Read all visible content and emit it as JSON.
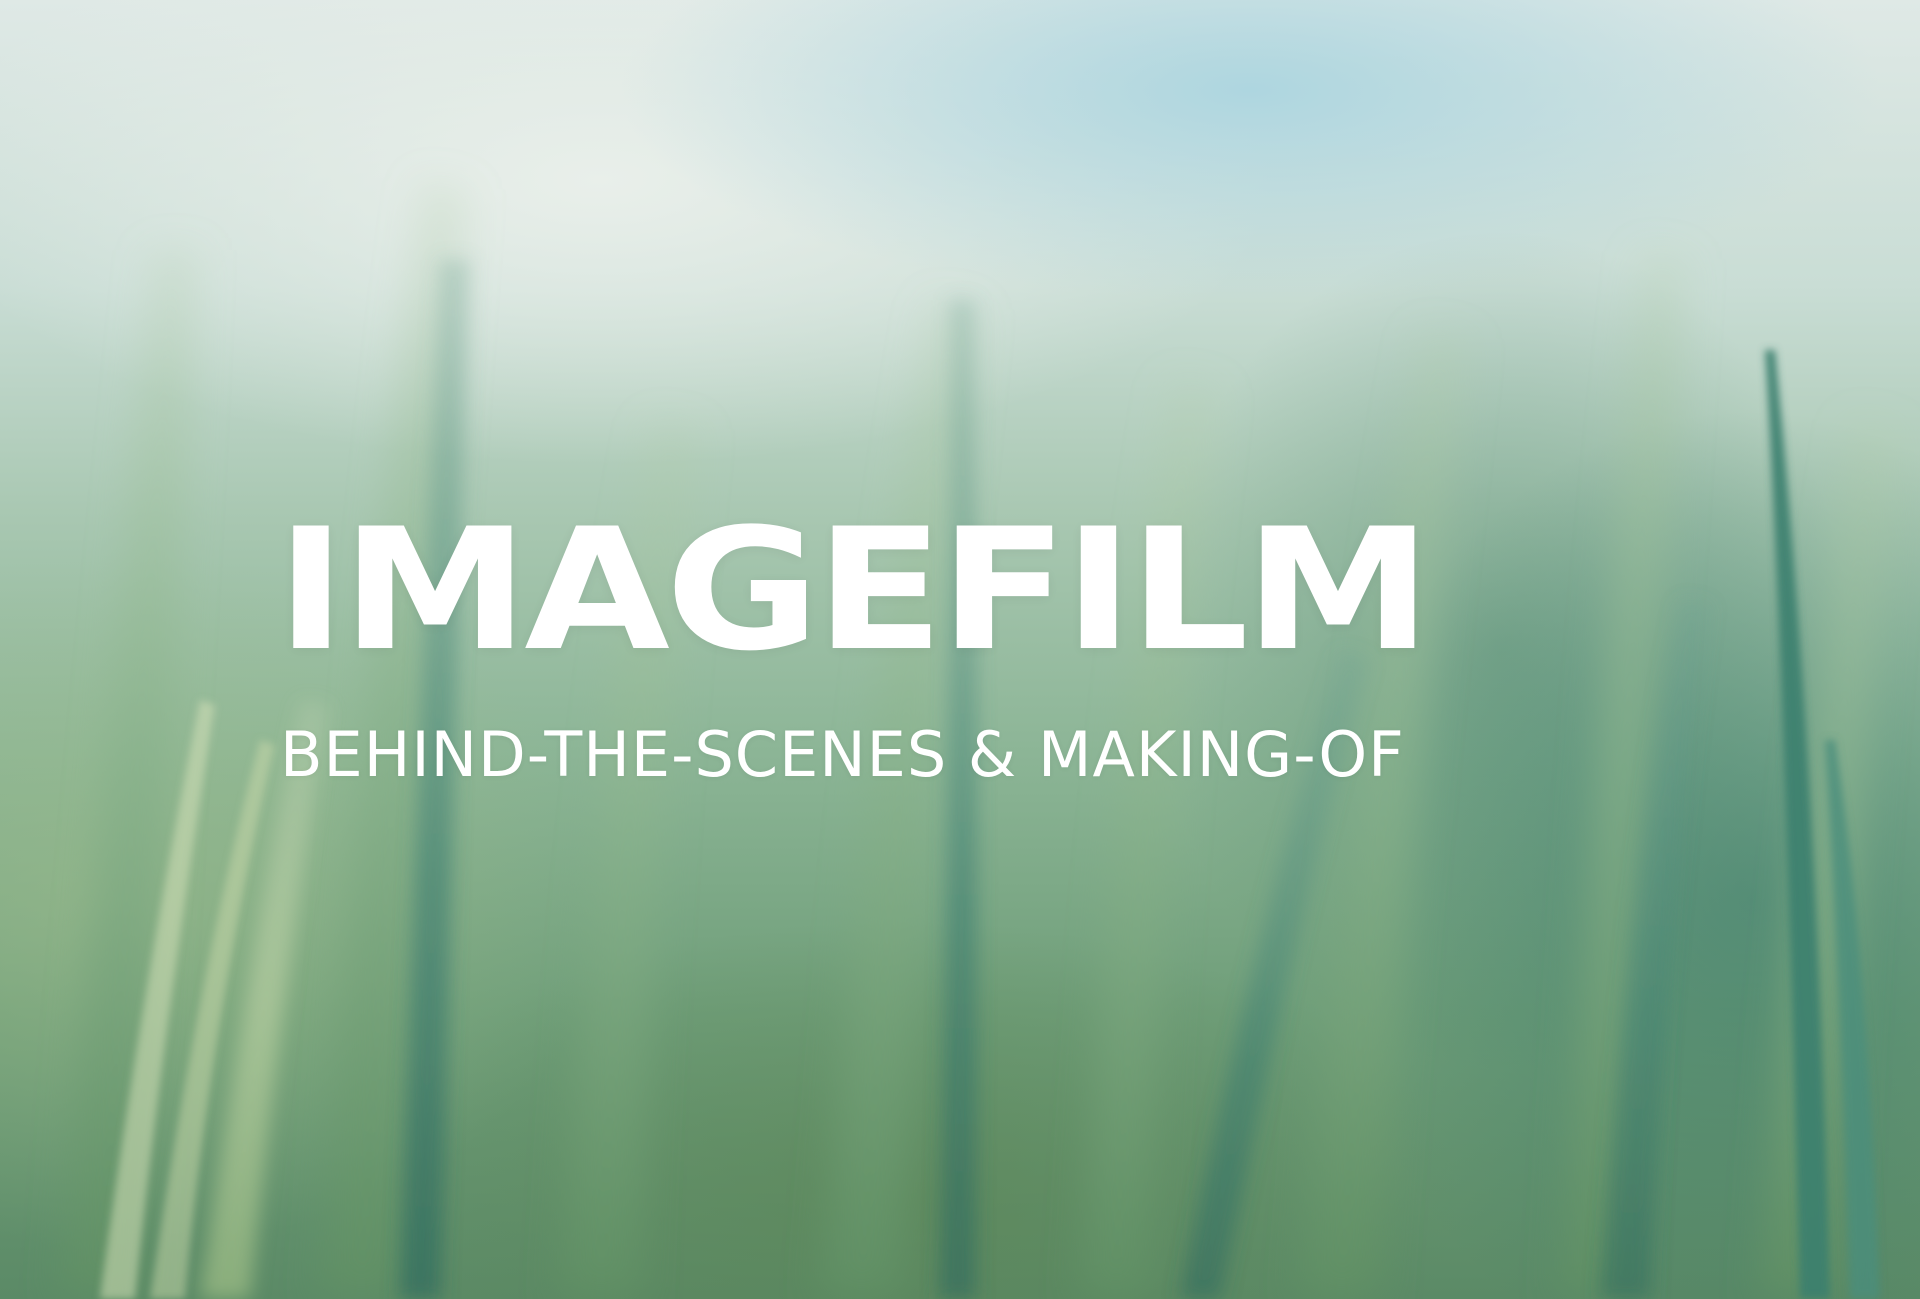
{
  "title": "IMAGEFILM",
  "subtitle": "BEHIND-THE-SCENES & MAKING-OF",
  "colors": {
    "text": "#ffffff",
    "sky": "#dfe9e6",
    "grass_light": "#a8c7b1",
    "grass_dark": "#3f7f72"
  }
}
